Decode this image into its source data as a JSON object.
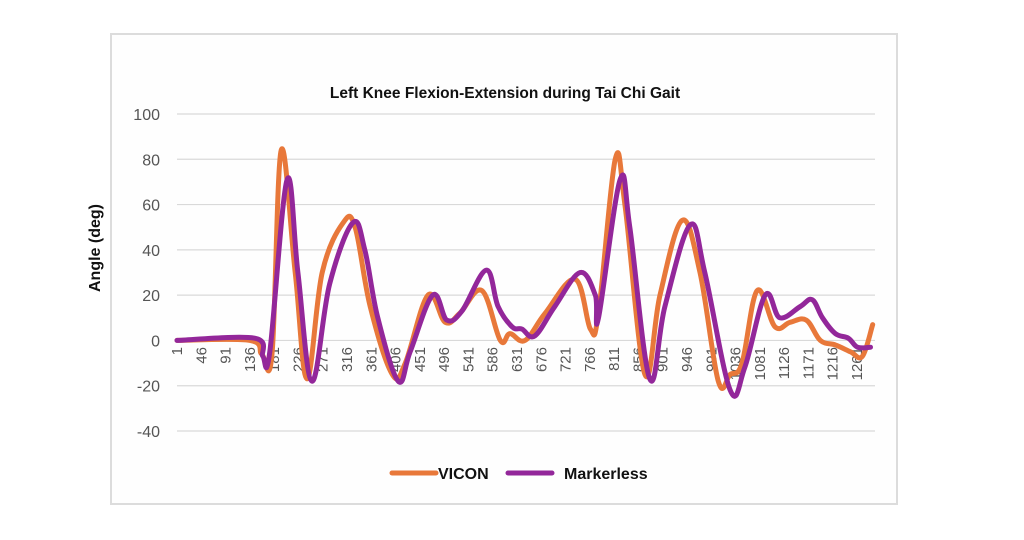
{
  "chart_data": {
    "type": "line",
    "title": "Left Knee Flexion-Extension during Tai Chi Gait",
    "xlabel": "",
    "ylabel": "Angle (deg)",
    "ylim": [
      -40,
      100
    ],
    "yticks": [
      100,
      80,
      60,
      40,
      20,
      0,
      -20,
      -40
    ],
    "ytick_labels": [
      "100",
      "80",
      "60",
      "40",
      "20",
      "0",
      "-20",
      "-40"
    ],
    "xlim": [
      1,
      1300
    ],
    "xtick_labels": [
      "1",
      "46",
      "91",
      "136",
      "181",
      "226",
      "271",
      "316",
      "361",
      "406",
      "451",
      "496",
      "541",
      "586",
      "631",
      "676",
      "721",
      "766",
      "811",
      "856",
      "901",
      "946",
      "991",
      "1036",
      "1081",
      "1126",
      "1171",
      "1216",
      "1261"
    ],
    "grid": true,
    "legend_position": "bottom",
    "series": [
      {
        "name": "VICON",
        "color": "#e8783a",
        "x": [
          1,
          136,
          158,
          177,
          194,
          220,
          242,
          270,
          309,
          331,
          359,
          400,
          424,
          466,
          498,
          525,
          566,
          600,
          618,
          646,
          683,
          739,
          767,
          782,
          813,
          831,
          868,
          896,
          937,
          970,
          1004,
          1026,
          1048,
          1076,
          1109,
          1137,
          1167,
          1193,
          1221,
          1249,
          1271,
          1290
        ],
        "y": [
          0,
          0,
          -6,
          -6,
          84,
          30,
          -17,
          30,
          52,
          50,
          15,
          -15,
          -10,
          20,
          8,
          12,
          22,
          0,
          3,
          0,
          12,
          27,
          5,
          12,
          80,
          60,
          -15,
          20,
          53,
          30,
          -18,
          -15,
          -10,
          22,
          6,
          8,
          9,
          0,
          -2,
          -5,
          -7,
          7
        ]
      },
      {
        "name": "Markerless",
        "color": "#93279a",
        "x": [
          1,
          145,
          160,
          173,
          205,
          225,
          251,
          284,
          327,
          349,
          373,
          411,
          433,
          475,
          501,
          529,
          574,
          596,
          622,
          640,
          664,
          701,
          748,
          776,
          782,
          822,
          840,
          877,
          905,
          952,
          979,
          1026,
          1053,
          1091,
          1118,
          1156,
          1178,
          1197,
          1221,
          1245,
          1262,
          1286
        ],
        "y": [
          0,
          1,
          -7,
          -5,
          71,
          30,
          -18,
          25,
          52,
          40,
          10,
          -18,
          -5,
          20,
          9,
          13,
          31,
          15,
          6,
          5,
          2,
          15,
          30,
          20,
          10,
          71,
          50,
          -17,
          15,
          51,
          30,
          -22,
          -12,
          20,
          10,
          15,
          18,
          10,
          3,
          1,
          -3,
          -3
        ]
      }
    ]
  }
}
